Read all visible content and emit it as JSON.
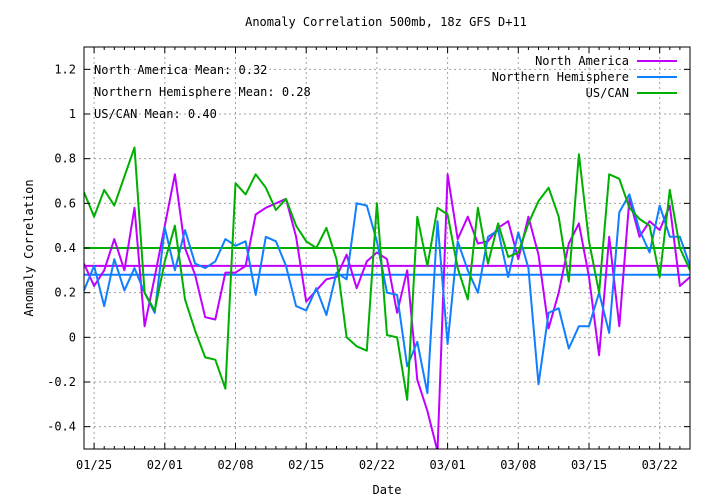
{
  "chart_data": {
    "type": "line",
    "title": "Anomaly Correlation 500mb, 18z GFS  D+11",
    "xlabel": "Date",
    "ylabel": "Anomaly Correlation",
    "ylim": [
      -0.5,
      1.3
    ],
    "xlim": [
      0,
      60
    ],
    "yticks": [
      -0.4,
      -0.2,
      0,
      0.2,
      0.4,
      0.6,
      0.8,
      1,
      1.2
    ],
    "ytick_labels": [
      "-0.4",
      "-0.2",
      "0",
      "0.2",
      "0.4",
      "0.6",
      "0.8",
      "1",
      "1.2"
    ],
    "xticks": [
      1,
      8,
      15,
      22,
      29,
      36,
      43,
      50,
      57
    ],
    "xtick_labels": [
      "01/25",
      "02/01",
      "02/08",
      "02/15",
      "02/22",
      "03/01",
      "03/08",
      "03/15",
      "03/22"
    ],
    "grid": true,
    "legend_position": "top-right",
    "means_text": [
      "North America Mean: 0.32",
      "Northern Hemisphere Mean: 0.28",
      "US/CAN Mean: 0.40"
    ],
    "series": [
      {
        "name": "North America",
        "color": "#c000ff",
        "mean": 0.32,
        "x": [
          0,
          1,
          2,
          3,
          4,
          5,
          6,
          7,
          8,
          9,
          10,
          11,
          12,
          13,
          14,
          15,
          16,
          17,
          18,
          19,
          20,
          21,
          22,
          23,
          24,
          25,
          26,
          27,
          28,
          29,
          30,
          31,
          32,
          33,
          34,
          35,
          36,
          37,
          38,
          39,
          40,
          41,
          42,
          43,
          44,
          45,
          46,
          47,
          48,
          49,
          50,
          51,
          52,
          53,
          54,
          55,
          56,
          57,
          58,
          59,
          60
        ],
        "values": [
          0.33,
          0.23,
          0.3,
          0.44,
          0.3,
          0.58,
          0.05,
          0.27,
          0.5,
          0.73,
          0.4,
          0.28,
          0.09,
          0.08,
          0.29,
          0.29,
          0.32,
          0.55,
          0.58,
          0.6,
          0.62,
          0.45,
          0.16,
          0.21,
          0.26,
          0.27,
          0.37,
          0.22,
          0.34,
          0.38,
          0.35,
          0.11,
          0.3,
          -0.19,
          -0.33,
          -0.51,
          0.73,
          0.44,
          0.54,
          0.42,
          0.43,
          0.49,
          0.52,
          0.35,
          0.54,
          0.37,
          0.04,
          0.2,
          0.42,
          0.51,
          0.27,
          -0.08,
          0.45,
          0.05,
          0.62,
          0.45,
          0.52,
          0.48,
          0.59,
          0.23,
          0.27
        ]
      },
      {
        "name": "Northern Hemisphere",
        "color": "#0f7fff",
        "mean": 0.28,
        "x": [
          0,
          1,
          2,
          3,
          4,
          5,
          6,
          7,
          8,
          9,
          10,
          11,
          12,
          13,
          14,
          15,
          16,
          17,
          18,
          19,
          20,
          21,
          22,
          23,
          24,
          25,
          26,
          27,
          28,
          29,
          30,
          31,
          32,
          33,
          34,
          35,
          36,
          37,
          38,
          39,
          40,
          41,
          42,
          43,
          44,
          45,
          46,
          47,
          48,
          49,
          50,
          51,
          52,
          53,
          54,
          55,
          56,
          57,
          58,
          59,
          60
        ],
        "values": [
          0.21,
          0.32,
          0.14,
          0.35,
          0.21,
          0.31,
          0.2,
          0.11,
          0.49,
          0.3,
          0.48,
          0.33,
          0.31,
          0.34,
          0.44,
          0.41,
          0.43,
          0.19,
          0.45,
          0.43,
          0.32,
          0.14,
          0.12,
          0.22,
          0.1,
          0.29,
          0.26,
          0.6,
          0.59,
          0.43,
          0.2,
          0.19,
          -0.13,
          -0.02,
          -0.25,
          0.52,
          -0.03,
          0.43,
          0.3,
          0.2,
          0.45,
          0.48,
          0.27,
          0.47,
          0.31,
          -0.21,
          0.11,
          0.13,
          -0.05,
          0.05,
          0.05,
          0.2,
          0.02,
          0.56,
          0.64,
          0.48,
          0.38,
          0.59,
          0.45,
          0.45,
          0.32
        ]
      },
      {
        "name": "US/CAN",
        "color": "#00b000",
        "mean": 0.4,
        "x": [
          0,
          1,
          2,
          3,
          4,
          5,
          6,
          7,
          8,
          9,
          10,
          11,
          12,
          13,
          14,
          15,
          16,
          17,
          18,
          19,
          20,
          21,
          22,
          23,
          24,
          25,
          26,
          27,
          28,
          29,
          30,
          31,
          32,
          33,
          34,
          35,
          36,
          37,
          38,
          39,
          40,
          41,
          42,
          43,
          44,
          45,
          46,
          47,
          48,
          49,
          50,
          51,
          52,
          53,
          54,
          55,
          56,
          57,
          58,
          59,
          60
        ],
        "values": [
          0.65,
          0.54,
          0.66,
          0.59,
          0.72,
          0.85,
          0.2,
          0.12,
          0.34,
          0.5,
          0.17,
          0.03,
          -0.09,
          -0.1,
          -0.23,
          0.69,
          0.64,
          0.73,
          0.67,
          0.57,
          0.62,
          0.5,
          0.43,
          0.4,
          0.49,
          0.35,
          0.0,
          -0.04,
          -0.06,
          0.6,
          0.01,
          0.0,
          -0.28,
          0.54,
          0.32,
          0.58,
          0.55,
          0.31,
          0.17,
          0.58,
          0.33,
          0.51,
          0.36,
          0.38,
          0.51,
          0.61,
          0.67,
          0.54,
          0.25,
          0.82,
          0.43,
          0.2,
          0.73,
          0.71,
          0.58,
          0.53,
          0.5,
          0.27,
          0.66,
          0.4,
          0.3
        ]
      }
    ]
  }
}
